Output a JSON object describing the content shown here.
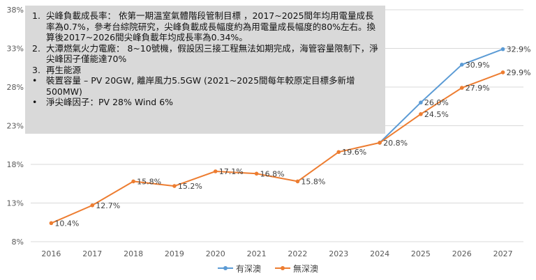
{
  "chart_data": {
    "type": "line",
    "title": "",
    "xlabel": "",
    "ylabel": "",
    "x": [
      "2016",
      "2017",
      "2018",
      "2019",
      "2020",
      "2021",
      "2022",
      "2023",
      "2024",
      "2025",
      "2026",
      "2027"
    ],
    "ylim": [
      8,
      38
    ],
    "yticks": [
      8,
      13,
      18,
      23,
      28,
      33,
      38
    ],
    "ytick_labels": [
      "8%",
      "13%",
      "18%",
      "23%",
      "28%",
      "33%",
      "38%"
    ],
    "grid": true,
    "legend_position": "bottom",
    "series": [
      {
        "name": "有深澳",
        "color": "#5b9bd5",
        "values": [
          null,
          null,
          null,
          null,
          null,
          null,
          null,
          null,
          20.8,
          26.0,
          30.9,
          32.9
        ],
        "labels": [
          null,
          null,
          null,
          null,
          null,
          null,
          null,
          null,
          null,
          "26.0%",
          "30.9%",
          "32.9%"
        ]
      },
      {
        "name": "無深澳",
        "color": "#ed7d31",
        "values": [
          10.4,
          12.7,
          15.8,
          15.2,
          17.1,
          16.8,
          15.8,
          19.6,
          20.8,
          24.5,
          27.9,
          29.9
        ],
        "labels": [
          "10.4%",
          "12.7%",
          "15.8%",
          "15.2%",
          "17.1%",
          "16.8%",
          "15.8%",
          "19.6%",
          "20.8%",
          "24.5%",
          "27.9%",
          "29.9%"
        ]
      }
    ]
  },
  "notes": [
    {
      "marker": "1.",
      "text": "尖峰負載成長率： 依第一期溫室氣體階段管制目標 ，2017~2025間年均用電量成長率為0.7%，參考台綜院研究，尖峰負載成長幅度約為用電量成長幅度的80%左右。換算後2017~2026間尖峰負載年均成長率為0.34%。"
    },
    {
      "marker": "2.",
      "text": "大潭燃氣火力電廠： 8~10號機，假設因三接工程無法如期完成，海管容量限制下，淨尖峰因子僅能達70%"
    },
    {
      "marker": "3.",
      "text": "再生能源"
    },
    {
      "marker": "•",
      "text": "裝置容量 – PV 20GW, 離岸風力5.5GW (2021~2025間每年較原定目標多新增500MW)"
    },
    {
      "marker": "•",
      "text": "淨尖峰因子：PV 28%  Wind 6%"
    }
  ]
}
